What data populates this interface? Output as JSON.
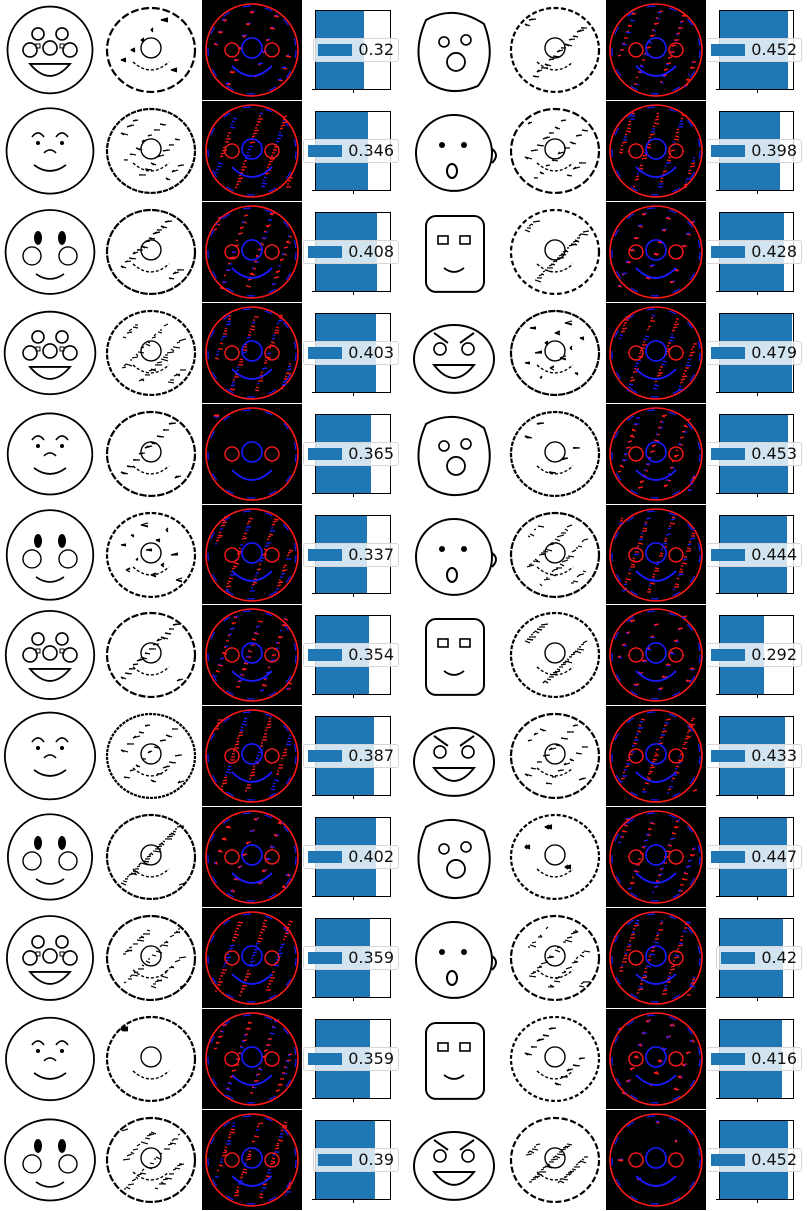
{
  "colors": {
    "bar": "#1f77b4",
    "heat_background": "#000000",
    "heat_positive": "#ff1a1a",
    "heat_negative": "#1a1aff",
    "sketch_stroke": "#000000"
  },
  "rows": [
    {
      "left_score": "0.32",
      "right_score": "0.452",
      "left_value": 0.32,
      "right_value": 0.452
    },
    {
      "left_score": "0.346",
      "right_score": "0.398",
      "left_value": 0.346,
      "right_value": 0.398
    },
    {
      "left_score": "0.408",
      "right_score": "0.428",
      "left_value": 0.408,
      "right_value": 0.428
    },
    {
      "left_score": "0.403",
      "right_score": "0.479",
      "left_value": 0.403,
      "right_value": 0.479
    },
    {
      "left_score": "0.365",
      "right_score": "0.453",
      "left_value": 0.365,
      "right_value": 0.453
    },
    {
      "left_score": "0.337",
      "right_score": "0.444",
      "left_value": 0.337,
      "right_value": 0.444
    },
    {
      "left_score": "0.354",
      "right_score": "0.292",
      "left_value": 0.354,
      "right_value": 0.292
    },
    {
      "left_score": "0.387",
      "right_score": "0.433",
      "left_value": 0.387,
      "right_value": 0.433
    },
    {
      "left_score": "0.402",
      "right_score": "0.447",
      "left_value": 0.402,
      "right_value": 0.447
    },
    {
      "left_score": "0.359",
      "right_score": "0.42",
      "left_value": 0.359,
      "right_value": 0.42
    },
    {
      "left_score": "0.359",
      "right_score": "0.416",
      "left_value": 0.359,
      "right_value": 0.416
    },
    {
      "left_score": "0.39",
      "right_score": "0.452",
      "left_value": 0.39,
      "right_value": 0.452
    }
  ]
}
